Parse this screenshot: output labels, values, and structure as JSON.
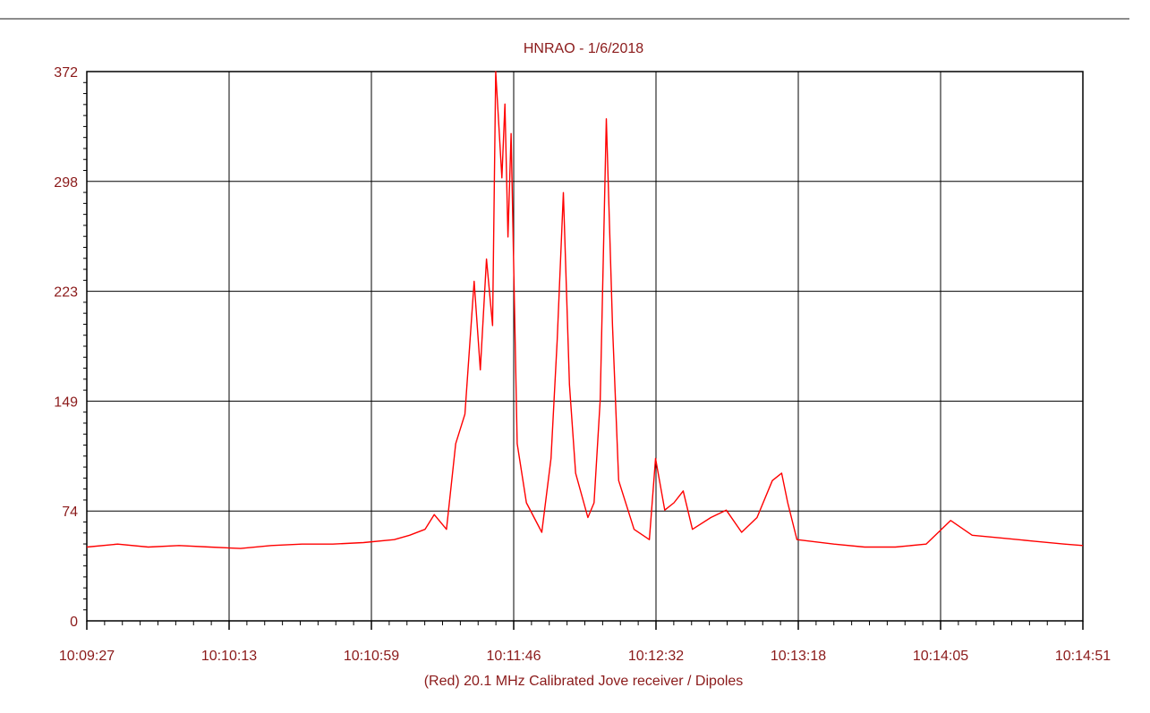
{
  "chart_data": {
    "type": "line",
    "title": "HNRAO - 1/6/2018",
    "xlabel": "(Red) 20.1 MHz Calibrated Jove receiver / Dipoles",
    "ylabel": "",
    "x_ticks": [
      "10:09:27",
      "10:10:13",
      "10:10:59",
      "10:11:46",
      "10:12:32",
      "10:13:18",
      "10:14:05",
      "10:14:51"
    ],
    "y_ticks": [
      "0",
      "74",
      "149",
      "223",
      "298",
      "372"
    ],
    "ylim": [
      0,
      372
    ],
    "xlim": [
      "10:09:27",
      "10:14:51"
    ],
    "grid": true,
    "series": [
      {
        "color": "#ff0000",
        "x": [
          "10:09:27",
          "10:09:37",
          "10:09:47",
          "10:09:57",
          "10:10:07",
          "10:10:17",
          "10:10:27",
          "10:10:37",
          "10:10:47",
          "10:10:57",
          "10:11:07",
          "10:11:12",
          "10:11:17",
          "10:11:20",
          "10:11:24",
          "10:11:27",
          "10:11:30",
          "10:11:33",
          "10:11:35",
          "10:11:37",
          "10:11:39",
          "10:11:40",
          "10:11:42",
          "10:11:43",
          "10:11:44",
          "10:11:45",
          "10:11:47",
          "10:11:50",
          "10:11:55",
          "10:11:58",
          "10:12:00",
          "10:12:02",
          "10:12:04",
          "10:12:06",
          "10:12:10",
          "10:12:12",
          "10:12:14",
          "10:12:16",
          "10:12:18",
          "10:12:20",
          "10:12:25",
          "10:12:30",
          "10:12:32",
          "10:12:35",
          "10:12:38",
          "10:12:41",
          "10:12:44",
          "10:12:50",
          "10:12:55",
          "10:13:00",
          "10:13:05",
          "10:13:10",
          "10:13:13",
          "10:13:15",
          "10:13:18",
          "10:13:30",
          "10:13:40",
          "10:13:50",
          "10:14:00",
          "10:14:08",
          "10:14:15",
          "10:14:25",
          "10:14:35",
          "10:14:45",
          "10:14:51"
        ],
        "values": [
          50,
          52,
          50,
          51,
          50,
          49,
          51,
          52,
          52,
          53,
          55,
          58,
          62,
          72,
          62,
          120,
          140,
          230,
          170,
          245,
          200,
          372,
          300,
          350,
          260,
          330,
          120,
          80,
          60,
          110,
          190,
          290,
          160,
          100,
          70,
          80,
          150,
          340,
          200,
          95,
          62,
          55,
          110,
          75,
          80,
          88,
          62,
          70,
          75,
          60,
          70,
          95,
          100,
          80,
          55,
          52,
          50,
          50,
          52,
          68,
          58,
          56,
          54,
          52,
          51
        ]
      }
    ]
  }
}
